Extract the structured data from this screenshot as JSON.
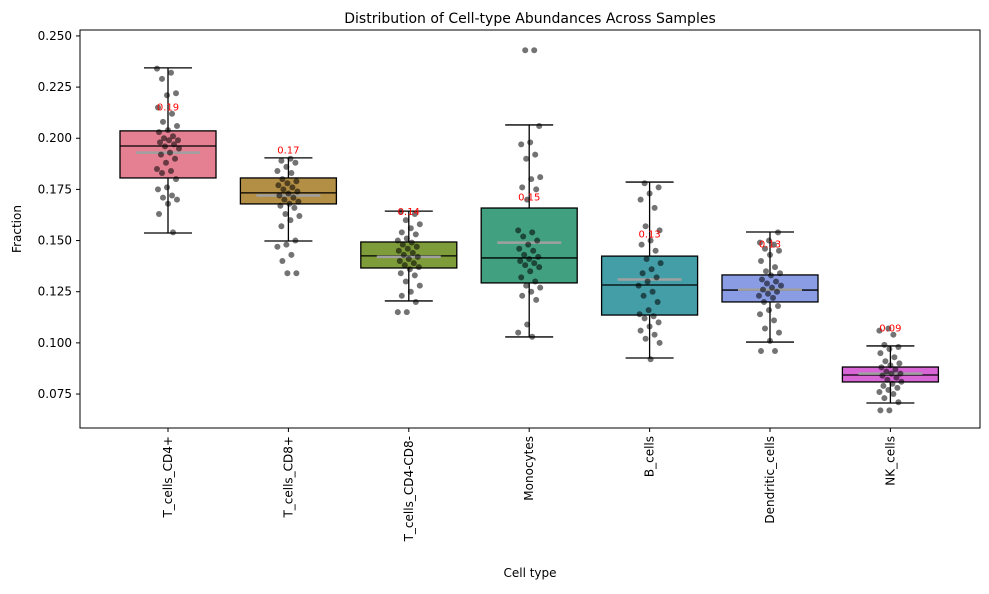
{
  "chart_data": {
    "type": "box",
    "title": "Distribution of Cell-type Abundances Across Samples",
    "xlabel": "Cell type",
    "ylabel": "Fraction",
    "ylim": [
      0.0584,
      0.2529
    ],
    "yticks": [
      "0.075",
      "0.100",
      "0.125",
      "0.150",
      "0.175",
      "0.200",
      "0.225",
      "0.250"
    ],
    "grid": false,
    "categories": [
      "T_cells_CD4+",
      "T_cells_CD8+",
      "T_cells_CD4-CD8-",
      "Monocytes",
      "B_cells",
      "Dendritic_cells",
      "NK_cells"
    ],
    "colors": [
      "#e58093",
      "#b38e45",
      "#7f9c3a",
      "#41a07f",
      "#449ea8",
      "#8a9de4",
      "#d966d6"
    ],
    "mean_line_color": "#a0a0a0",
    "annotation_color": "#ff0000",
    "boxes": [
      {
        "whisker_low": 0.1537,
        "q1": 0.1806,
        "median": 0.1962,
        "q3": 0.2036,
        "whisker_high": 0.2344,
        "mean": 0.193,
        "label": "0.19"
      },
      {
        "whisker_low": 0.1498,
        "q1": 0.1679,
        "median": 0.1733,
        "q3": 0.1806,
        "whisker_high": 0.1904,
        "mean": 0.172,
        "label": "0.17"
      },
      {
        "whisker_low": 0.1205,
        "q1": 0.1366,
        "median": 0.1425,
        "q3": 0.1493,
        "whisker_high": 0.1644,
        "mean": 0.142,
        "label": "0.14"
      },
      {
        "whisker_low": 0.1029,
        "q1": 0.1293,
        "median": 0.1415,
        "q3": 0.1659,
        "whisker_high": 0.2065,
        "mean": 0.149,
        "label": "0.15"
      },
      {
        "whisker_low": 0.0926,
        "q1": 0.1136,
        "median": 0.1283,
        "q3": 0.1424,
        "whisker_high": 0.1786,
        "mean": 0.131,
        "label": "0.13"
      },
      {
        "whisker_low": 0.1004,
        "q1": 0.12,
        "median": 0.1258,
        "q3": 0.1332,
        "whisker_high": 0.1542,
        "mean": 0.126,
        "label": "0.13"
      },
      {
        "whisker_low": 0.0706,
        "q1": 0.0809,
        "median": 0.0843,
        "q3": 0.0882,
        "whisker_high": 0.0985,
        "mean": 0.085,
        "label": "0.09"
      }
    ],
    "points": [
      [
        0.234,
        0.232,
        0.229,
        0.222,
        0.221,
        0.215,
        0.212,
        0.208,
        0.206,
        0.204,
        0.203,
        0.201,
        0.2,
        0.199,
        0.199,
        0.198,
        0.197,
        0.196,
        0.195,
        0.193,
        0.192,
        0.19,
        0.188,
        0.185,
        0.184,
        0.183,
        0.18,
        0.176,
        0.175,
        0.172,
        0.171,
        0.17,
        0.168,
        0.163,
        0.154
      ],
      [
        0.19,
        0.189,
        0.188,
        0.186,
        0.184,
        0.183,
        0.18,
        0.179,
        0.178,
        0.177,
        0.176,
        0.175,
        0.174,
        0.173,
        0.172,
        0.171,
        0.17,
        0.169,
        0.168,
        0.167,
        0.166,
        0.163,
        0.162,
        0.16,
        0.157,
        0.15,
        0.148,
        0.147,
        0.143,
        0.14,
        0.134,
        0.134
      ],
      [
        0.164,
        0.163,
        0.16,
        0.158,
        0.156,
        0.154,
        0.153,
        0.151,
        0.15,
        0.149,
        0.148,
        0.147,
        0.146,
        0.145,
        0.144,
        0.143,
        0.142,
        0.141,
        0.14,
        0.139,
        0.138,
        0.137,
        0.136,
        0.134,
        0.133,
        0.13,
        0.128,
        0.125,
        0.123,
        0.12,
        0.115,
        0.115
      ],
      [
        0.243,
        0.243,
        0.206,
        0.198,
        0.197,
        0.192,
        0.19,
        0.181,
        0.18,
        0.176,
        0.175,
        0.17,
        0.155,
        0.154,
        0.152,
        0.15,
        0.148,
        0.146,
        0.145,
        0.143,
        0.142,
        0.141,
        0.14,
        0.139,
        0.138,
        0.137,
        0.135,
        0.132,
        0.13,
        0.128,
        0.127,
        0.125,
        0.123,
        0.121,
        0.109,
        0.105,
        0.103
      ],
      [
        0.178,
        0.176,
        0.173,
        0.17,
        0.166,
        0.157,
        0.155,
        0.15,
        0.148,
        0.145,
        0.141,
        0.139,
        0.136,
        0.134,
        0.132,
        0.13,
        0.128,
        0.125,
        0.123,
        0.12,
        0.116,
        0.114,
        0.113,
        0.112,
        0.11,
        0.108,
        0.106,
        0.104,
        0.102,
        0.1,
        0.092
      ],
      [
        0.154,
        0.15,
        0.149,
        0.148,
        0.146,
        0.145,
        0.143,
        0.14,
        0.137,
        0.135,
        0.134,
        0.133,
        0.131,
        0.13,
        0.129,
        0.128,
        0.127,
        0.126,
        0.125,
        0.124,
        0.123,
        0.122,
        0.12,
        0.118,
        0.116,
        0.114,
        0.111,
        0.107,
        0.105,
        0.101,
        0.096,
        0.096
      ],
      [
        0.107,
        0.106,
        0.104,
        0.099,
        0.098,
        0.097,
        0.095,
        0.093,
        0.091,
        0.09,
        0.089,
        0.088,
        0.087,
        0.086,
        0.085,
        0.085,
        0.084,
        0.083,
        0.082,
        0.081,
        0.08,
        0.079,
        0.078,
        0.077,
        0.076,
        0.075,
        0.073,
        0.071,
        0.067,
        0.067
      ]
    ]
  }
}
